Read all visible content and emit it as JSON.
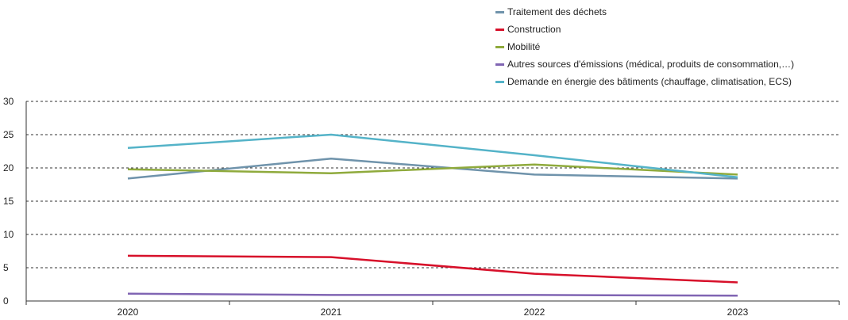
{
  "chart_data": {
    "type": "line",
    "title": "",
    "xlabel": "",
    "ylabel": "",
    "categories": [
      "2020",
      "2021",
      "2022",
      "2023"
    ],
    "ylim": [
      0,
      30
    ],
    "yticks": [
      0,
      5,
      10,
      15,
      20,
      25,
      30
    ],
    "grid": "horizontal-dashed",
    "legend_position": "top-right",
    "series": [
      {
        "name": "Traitement des déchets",
        "color": "#6f93ab",
        "values": [
          18.4,
          21.4,
          19.0,
          18.4
        ]
      },
      {
        "name": "Construction",
        "color": "#d7102a",
        "values": [
          6.8,
          6.6,
          4.1,
          2.8
        ]
      },
      {
        "name": "Mobilité",
        "color": "#8faa3c",
        "values": [
          19.8,
          19.2,
          20.5,
          19.0
        ]
      },
      {
        "name": "Autres sources d'émissions (médical, produits de consommation,…)",
        "color": "#8065b3",
        "values": [
          1.1,
          0.9,
          0.9,
          0.8
        ]
      },
      {
        "name": "Demande en énergie des bâtiments (chauffage, climatisation, ECS)",
        "color": "#54b3c8",
        "values": [
          23.0,
          25.0,
          21.9,
          18.6
        ]
      }
    ]
  }
}
